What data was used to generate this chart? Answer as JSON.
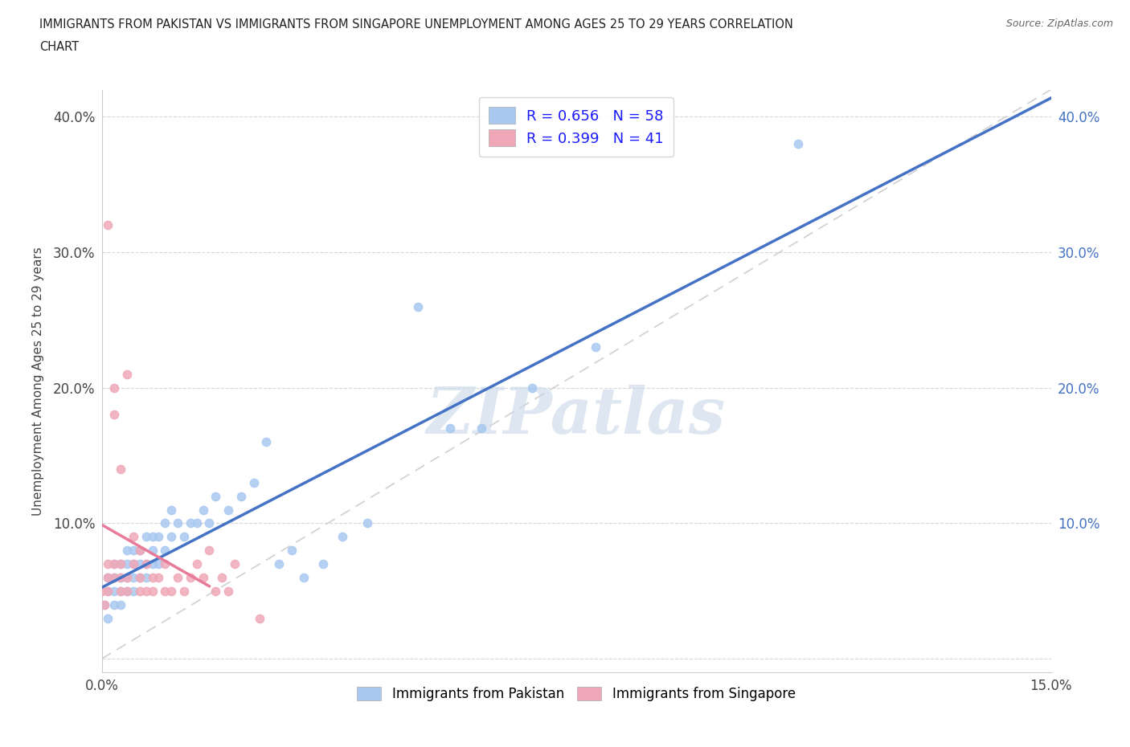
{
  "title_line1": "IMMIGRANTS FROM PAKISTAN VS IMMIGRANTS FROM SINGAPORE UNEMPLOYMENT AMONG AGES 25 TO 29 YEARS CORRELATION",
  "title_line2": "CHART",
  "source": "Source: ZipAtlas.com",
  "ylabel": "Unemployment Among Ages 25 to 29 years",
  "xlim": [
    0.0,
    0.15
  ],
  "ylim": [
    -0.01,
    0.42
  ],
  "xticks": [
    0.0,
    0.025,
    0.05,
    0.075,
    0.1,
    0.125,
    0.15
  ],
  "xticklabels": [
    "0.0%",
    "",
    "",
    "",
    "",
    "",
    "15.0%"
  ],
  "yticks": [
    0.0,
    0.1,
    0.2,
    0.3,
    0.4
  ],
  "yticklabels_left": [
    "",
    "10.0%",
    "20.0%",
    "30.0%",
    "40.0%"
  ],
  "yticklabels_right": [
    "",
    "10.0%",
    "20.0%",
    "30.0%",
    "40.0%"
  ],
  "pakistan_color": "#a8c8f0",
  "singapore_color": "#f0a8b8",
  "pakistan_R": 0.656,
  "pakistan_N": 58,
  "singapore_R": 0.399,
  "singapore_N": 41,
  "regression_line_color_pakistan": "#4472c4",
  "regression_line_color_singapore": "#e87a9a",
  "diagonal_color": "#d0d0d0",
  "watermark": "ZIPatlas",
  "watermark_color": "#c8d8e8",
  "background_color": "#ffffff",
  "pakistan_x": [
    0.0005,
    0.001,
    0.001,
    0.001,
    0.002,
    0.002,
    0.002,
    0.002,
    0.003,
    0.003,
    0.003,
    0.003,
    0.004,
    0.004,
    0.004,
    0.004,
    0.005,
    0.005,
    0.005,
    0.005,
    0.006,
    0.006,
    0.006,
    0.007,
    0.007,
    0.007,
    0.008,
    0.008,
    0.008,
    0.009,
    0.009,
    0.01,
    0.01,
    0.011,
    0.011,
    0.012,
    0.013,
    0.014,
    0.015,
    0.016,
    0.017,
    0.018,
    0.02,
    0.022,
    0.024,
    0.026,
    0.028,
    0.03,
    0.032,
    0.035,
    0.038,
    0.042,
    0.05,
    0.055,
    0.06,
    0.068,
    0.078,
    0.11
  ],
  "pakistan_y": [
    0.04,
    0.03,
    0.05,
    0.06,
    0.04,
    0.05,
    0.06,
    0.07,
    0.04,
    0.05,
    0.06,
    0.07,
    0.05,
    0.06,
    0.07,
    0.08,
    0.05,
    0.06,
    0.07,
    0.08,
    0.06,
    0.07,
    0.08,
    0.06,
    0.07,
    0.09,
    0.07,
    0.08,
    0.09,
    0.07,
    0.09,
    0.08,
    0.1,
    0.09,
    0.11,
    0.1,
    0.09,
    0.1,
    0.1,
    0.11,
    0.1,
    0.12,
    0.11,
    0.12,
    0.13,
    0.16,
    0.07,
    0.08,
    0.06,
    0.07,
    0.09,
    0.1,
    0.26,
    0.17,
    0.17,
    0.2,
    0.23,
    0.38
  ],
  "singapore_x": [
    0.0,
    0.0005,
    0.001,
    0.001,
    0.001,
    0.001,
    0.002,
    0.002,
    0.002,
    0.002,
    0.003,
    0.003,
    0.003,
    0.003,
    0.004,
    0.004,
    0.004,
    0.005,
    0.005,
    0.006,
    0.006,
    0.006,
    0.007,
    0.007,
    0.008,
    0.008,
    0.009,
    0.01,
    0.01,
    0.011,
    0.012,
    0.013,
    0.014,
    0.015,
    0.016,
    0.017,
    0.018,
    0.019,
    0.02,
    0.021,
    0.025
  ],
  "singapore_y": [
    0.05,
    0.04,
    0.05,
    0.06,
    0.07,
    0.32,
    0.06,
    0.07,
    0.18,
    0.2,
    0.05,
    0.06,
    0.07,
    0.14,
    0.05,
    0.06,
    0.21,
    0.07,
    0.09,
    0.05,
    0.06,
    0.08,
    0.05,
    0.07,
    0.05,
    0.06,
    0.06,
    0.05,
    0.07,
    0.05,
    0.06,
    0.05,
    0.06,
    0.07,
    0.06,
    0.08,
    0.05,
    0.06,
    0.05,
    0.07,
    0.03
  ]
}
